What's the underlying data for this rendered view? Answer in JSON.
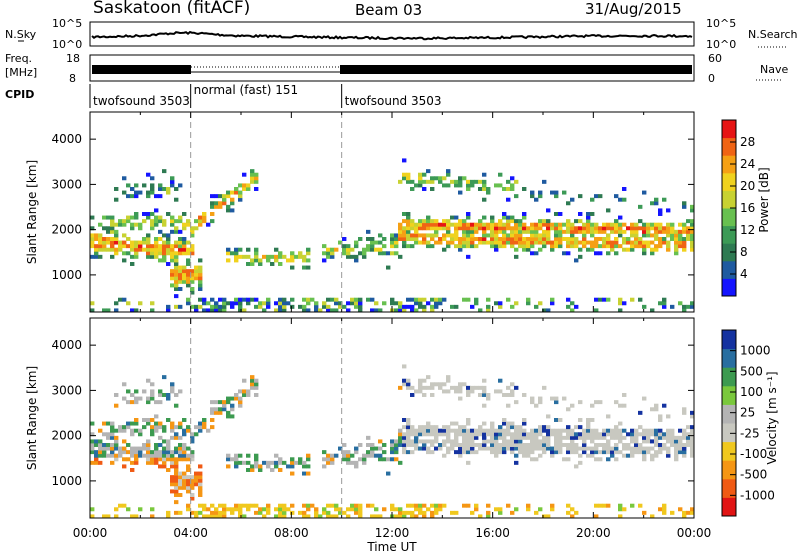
{
  "header": {
    "station": "Saskatoon (fitACF)",
    "beam": "Beam 03",
    "date": "31/Aug/2015"
  },
  "top_panels": {
    "nsky_label": "N.Sky",
    "nsearch_label": "N.Search",
    "nsky_ticks": [
      "10^5",
      "10^0"
    ],
    "freq_label": "Freq.",
    "freq_unit": "[MHz]",
    "freq_ticks": [
      "18",
      "8"
    ],
    "nave_label": "Nave",
    "nave_ticks": [
      "60",
      "0"
    ],
    "cpid_label": "CPID",
    "cpid_segments": [
      {
        "label": "twofsound 3503",
        "start_hour": 0,
        "end_hour": 4
      },
      {
        "label": "normal (fast) 151",
        "start_hour": 4,
        "end_hour": 10
      },
      {
        "label": "twofsound 3503",
        "start_hour": 10,
        "end_hour": 24
      }
    ]
  },
  "x_axis": {
    "label": "Time UT",
    "ticks": [
      "00:00",
      "04:00",
      "08:00",
      "12:00",
      "16:00",
      "20:00",
      "00:00"
    ]
  },
  "colors": {
    "power": [
      "#1414ff",
      "#1e5aa0",
      "#2e7a52",
      "#3c9a56",
      "#68c050",
      "#c8d232",
      "#f0d21e",
      "#f5a014",
      "#f06414",
      "#e61414"
    ],
    "velocity": [
      "#e11414",
      "#f05a14",
      "#f59614",
      "#f0c81e",
      "#c8c8c0",
      "#b4b4b4",
      "#7ac83c",
      "#3c9a50",
      "#286ea0",
      "#1432a0"
    ]
  },
  "chart_data": [
    {
      "type": "heatmap",
      "title": "Power",
      "ylabel": "Slant Range [km]",
      "xlabel": "",
      "xlim": [
        0,
        24
      ],
      "ylim": [
        180,
        4600
      ],
      "yticks": [
        1000,
        2000,
        3000,
        4000
      ],
      "colorbar": {
        "label": "Power [dB]",
        "range": [
          0,
          32
        ],
        "ticks": [
          "28",
          "24",
          "20",
          "16",
          "12",
          "8",
          "4"
        ]
      },
      "markers_hours": [
        4,
        10
      ]
    },
    {
      "type": "heatmap",
      "title": "Velocity",
      "ylabel": "Slant Range [km]",
      "xlabel": "Time UT",
      "xlim": [
        0,
        24
      ],
      "ylim": [
        180,
        4600
      ],
      "yticks": [
        1000,
        2000,
        3000,
        4000
      ],
      "colorbar": {
        "label": "Velocity [m s⁻¹]",
        "ticks": [
          "1000",
          "500",
          "100",
          "25",
          "-25",
          "-100",
          "-500",
          "-1000"
        ]
      },
      "markers_hours": [
        4,
        10
      ]
    }
  ]
}
